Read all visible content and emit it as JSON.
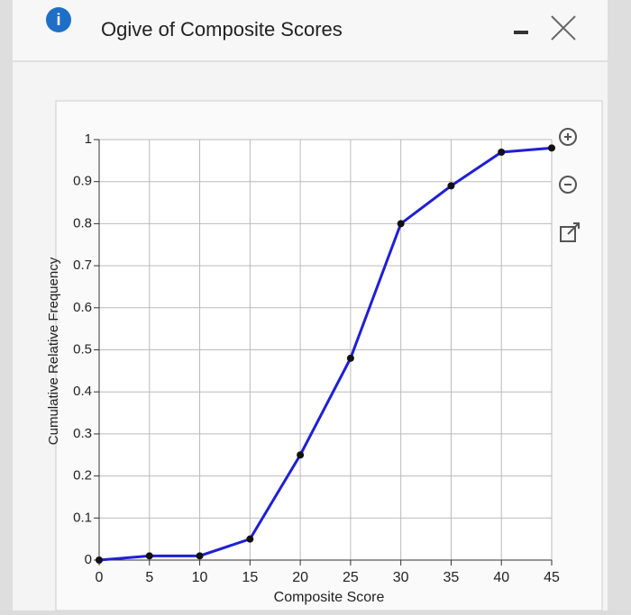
{
  "chart_data": {
    "type": "line",
    "title": "Ogive of Composite Scores",
    "x_label": "Composite Score",
    "y_label": "Cumulative Relative Frequency",
    "x": [
      0,
      5,
      10,
      15,
      20,
      25,
      30,
      35,
      40,
      45
    ],
    "series": [
      {
        "color": "#1f1fd6",
        "values": [
          0,
          0.01,
          0.01,
          0.05,
          0.25,
          0.48,
          0.8,
          0.89,
          0.97,
          0.98
        ]
      }
    ],
    "xlim": [
      0,
      45
    ],
    "ylim": [
      0,
      1
    ],
    "xticks": [
      0,
      5,
      10,
      15,
      20,
      25,
      30,
      35,
      40,
      45
    ],
    "yticks": [
      0,
      0.1,
      0.2,
      0.3,
      0.4,
      0.5,
      0.6,
      0.7,
      0.8,
      0.9,
      1
    ],
    "grid": true
  }
}
